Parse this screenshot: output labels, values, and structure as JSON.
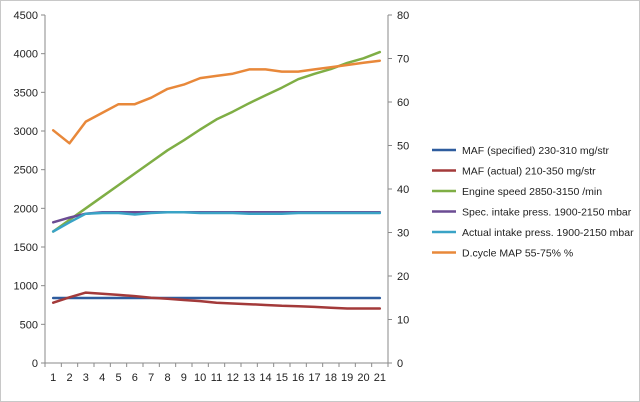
{
  "chart_data": {
    "type": "line",
    "title": "",
    "xlabel": "",
    "ylabel": "",
    "categories": [
      "1",
      "2",
      "3",
      "4",
      "5",
      "6",
      "7",
      "8",
      "9",
      "10",
      "11",
      "12",
      "13",
      "14",
      "15",
      "16",
      "17",
      "18",
      "19",
      "20",
      "21"
    ],
    "y_left": {
      "min": 0,
      "max": 4500,
      "ticks": [
        "0",
        "500",
        "1000",
        "1500",
        "2000",
        "2500",
        "3000",
        "3500",
        "4000",
        "4500"
      ]
    },
    "y_right": {
      "min": 0,
      "max": 80,
      "ticks": [
        "0",
        "10",
        "20",
        "30",
        "40",
        "50",
        "60",
        "70",
        "80"
      ]
    },
    "grid": false,
    "legend_position": "right",
    "series": [
      {
        "name": "MAF (specified) 230-310  mg/str",
        "color": "#2e5c9e",
        "axis": "left",
        "values": [
          840,
          840,
          840,
          840,
          840,
          840,
          840,
          840,
          840,
          840,
          840,
          840,
          840,
          840,
          840,
          840,
          840,
          840,
          840,
          840,
          840
        ]
      },
      {
        "name": "MAF (actual) 210-350  mg/str",
        "color": "#a33a3a",
        "axis": "left",
        "values": [
          780,
          850,
          910,
          895,
          880,
          865,
          845,
          830,
          815,
          800,
          780,
          770,
          760,
          750,
          740,
          735,
          725,
          715,
          705,
          705,
          705
        ]
      },
      {
        "name": "Engine speed 2850-3150  /min",
        "color": "#7fae45",
        "axis": "left",
        "values": [
          1700,
          1850,
          2000,
          2150,
          2300,
          2450,
          2600,
          2750,
          2880,
          3020,
          3150,
          3250,
          3360,
          3460,
          3560,
          3670,
          3740,
          3800,
          3880,
          3940,
          4020
        ]
      },
      {
        "name": "Spec. intake press. 1900-2150  mbar",
        "color": "#6b4c93",
        "axis": "left",
        "values": [
          1820,
          1880,
          1930,
          1950,
          1950,
          1950,
          1950,
          1950,
          1950,
          1950,
          1950,
          1950,
          1950,
          1950,
          1950,
          1950,
          1950,
          1950,
          1950,
          1950,
          1950
        ]
      },
      {
        "name": "Actual intake press. 1900-2150  mbar",
        "color": "#3aa3c6",
        "axis": "left",
        "values": [
          1700,
          1820,
          1930,
          1940,
          1940,
          1920,
          1940,
          1950,
          1950,
          1940,
          1940,
          1940,
          1930,
          1930,
          1930,
          1940,
          1940,
          1940,
          1940,
          1940,
          1940
        ]
      },
      {
        "name": "D.cycle MAP 55-75% %",
        "color": "#e8883a",
        "axis": "right",
        "values": [
          53.5,
          50.5,
          55.5,
          57.5,
          59.5,
          59.5,
          61,
          63,
          64,
          65.5,
          66,
          66.5,
          67.5,
          67.5,
          67,
          67,
          67.5,
          68,
          68.5,
          69,
          69.5
        ]
      }
    ]
  }
}
